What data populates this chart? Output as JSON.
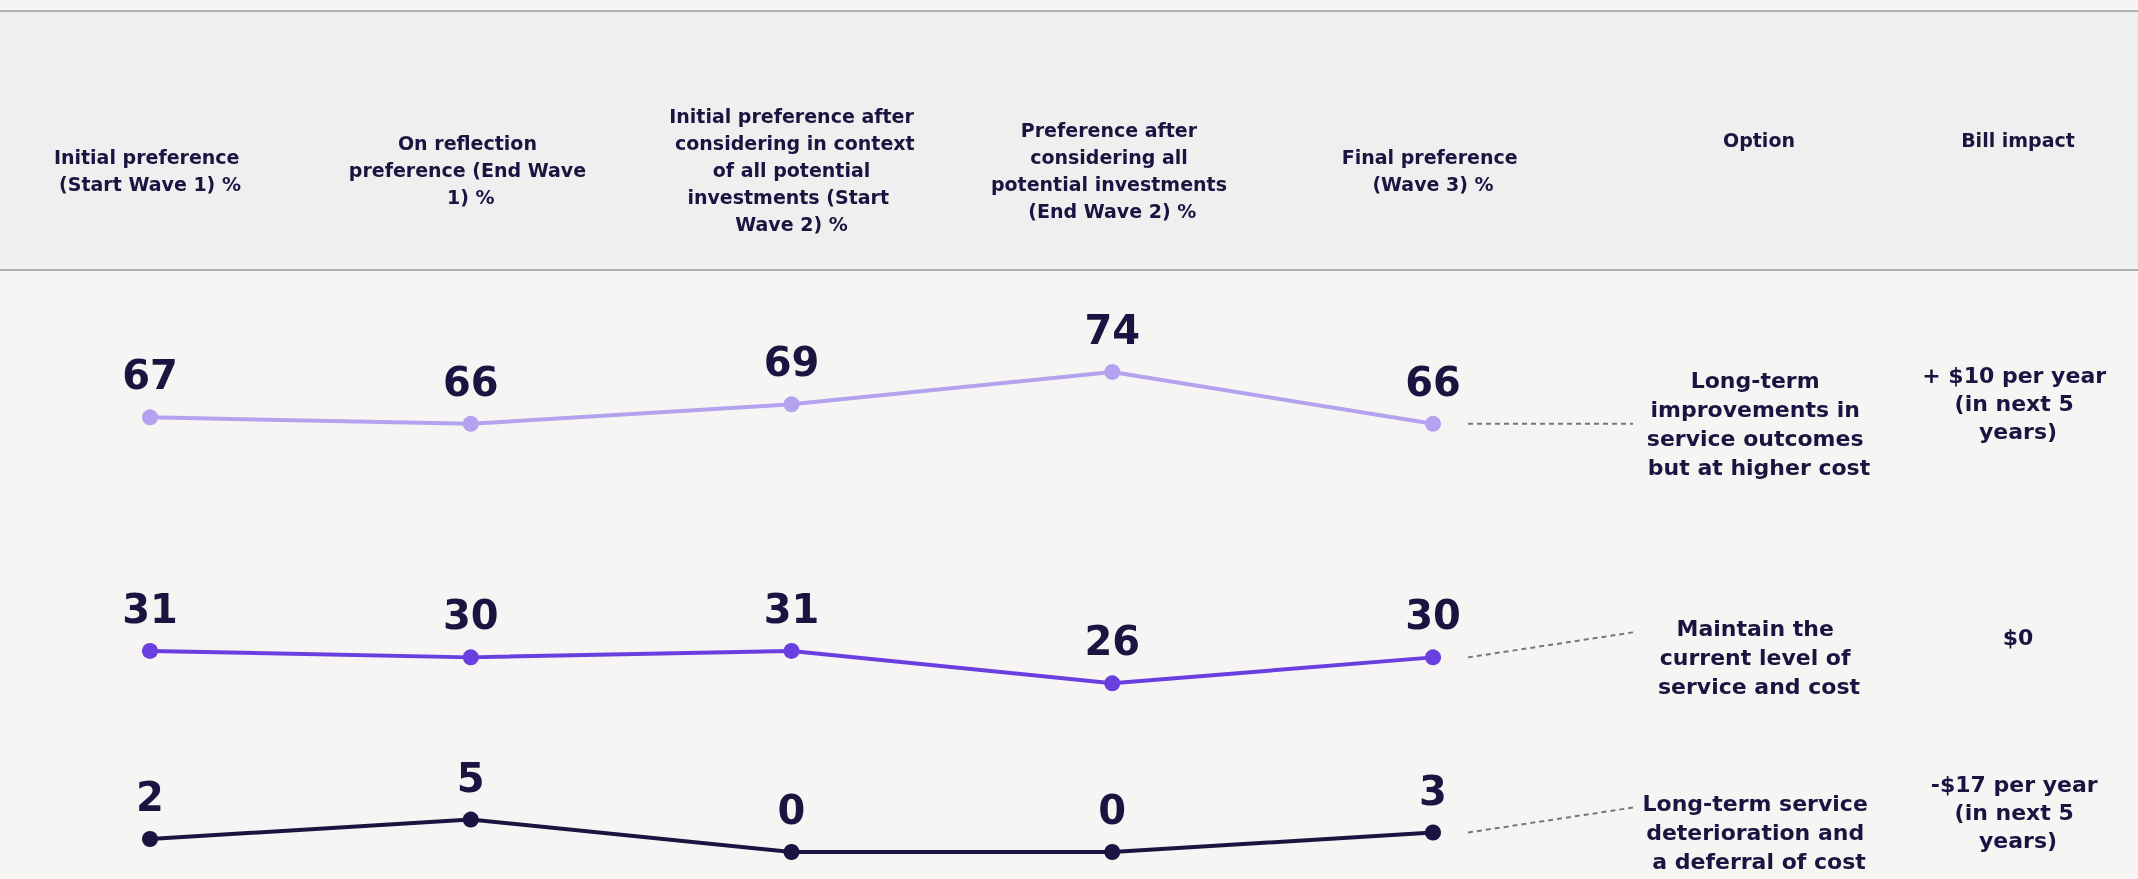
{
  "chart_data": {
    "type": "line",
    "categories": [
      "Initial preference (Start Wave 1) %",
      "On reflection preference (End Wave 1) %",
      "Initial preference after considering in context of all potential investments (Start Wave 2) %",
      "Preference after considering all potential investments (End Wave 2) %",
      "Final preference (Wave 3) %"
    ],
    "series": [
      {
        "name": "Long-term improvements in service outcomes but at higher cost",
        "color": "#b3a3ee",
        "values": [
          67,
          66,
          69,
          74,
          66
        ]
      },
      {
        "name": "Maintain the current level of service and cost",
        "color": "#6a3fe0",
        "values": [
          31,
          30,
          31,
          26,
          30
        ]
      },
      {
        "name": "Long-term service deterioration and a deferral of cost",
        "color": "#1a1440",
        "values": [
          2,
          5,
          0,
          0,
          3
        ]
      }
    ],
    "annotations": [
      "Option",
      "Bill impact",
      "+ $10 per year (in next 5 years)",
      "$0",
      "-$17 per year (in next 5 years)"
    ],
    "data_labels": true,
    "marker": "circle",
    "line_style": "solid",
    "legend": false,
    "grid": false
  }
}
